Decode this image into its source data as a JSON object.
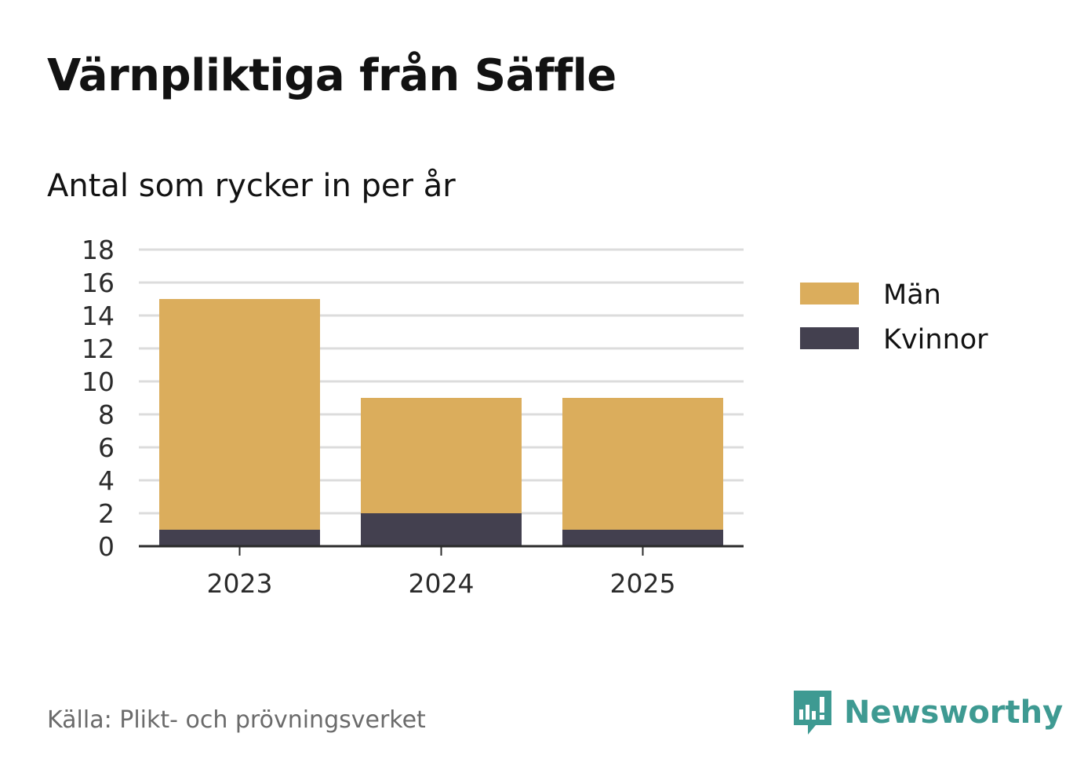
{
  "title": "Värnpliktiga från Säffle",
  "subtitle": "Antal som rycker in per år",
  "source": "Källa: Plikt- och prövningsverket",
  "brand": {
    "name": "Newsworthy",
    "icon": "newsworthy-logo-icon"
  },
  "colors": {
    "man": "#dbad5c",
    "kvinnor": "#43404f",
    "grid": "#dcdcdc",
    "axis": "#2b2b2b",
    "brand": "#3e9a92"
  },
  "chart_data": {
    "type": "bar",
    "stacked": true,
    "categories": [
      "2023",
      "2024",
      "2025"
    ],
    "series": [
      {
        "name": "Kvinnor",
        "values": [
          1,
          2,
          1
        ],
        "color": "#43404f"
      },
      {
        "name": "Män",
        "values": [
          14,
          7,
          8
        ],
        "color": "#dbad5c"
      }
    ],
    "ylim": [
      0,
      18
    ],
    "yticks": [
      0,
      2,
      4,
      6,
      8,
      10,
      12,
      14,
      16,
      18
    ],
    "grid": true,
    "legend": {
      "placement": "right",
      "entries": [
        "Män",
        "Kvinnor"
      ]
    }
  }
}
